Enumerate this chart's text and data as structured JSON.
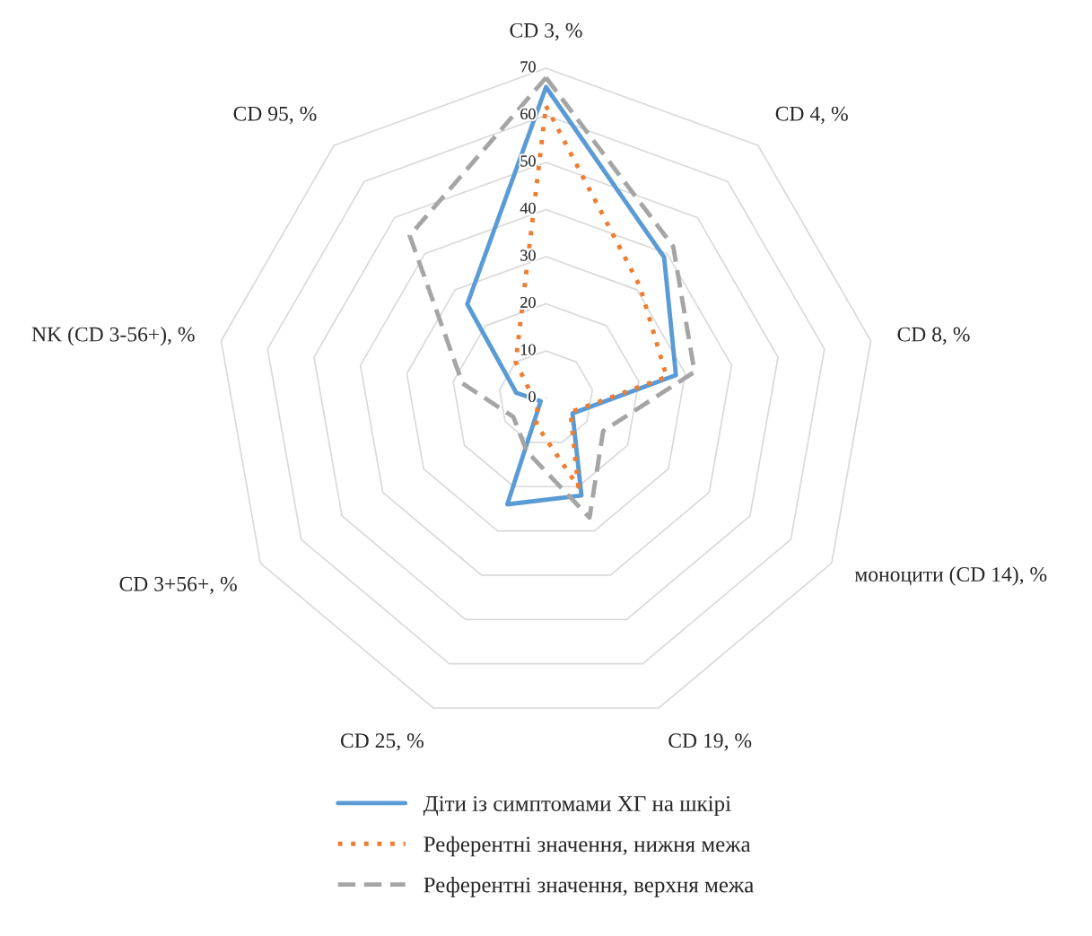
{
  "chart_data": {
    "type": "radar",
    "categories": [
      "CD 3, %",
      "CD 4, %",
      "CD 8, %",
      "моноцити (CD 14), %",
      "CD 19, %",
      "CD 25, %",
      "CD 3+56+, %",
      "NK (CD 3-56+), %",
      "CD 95, %"
    ],
    "series": [
      {
        "name": "Діти із симптомами ХГ на шкірі",
        "color": "#5b9bd5",
        "line_style": "solid",
        "values": [
          66,
          39,
          28,
          6.5,
          22,
          24,
          1.3,
          6.4,
          26
        ]
      },
      {
        "name": "Референтні значення, нижня межа",
        "color": "#ed7d31",
        "line_style": "dotted",
        "values": [
          62,
          31,
          26,
          6,
          20,
          6,
          2,
          3,
          10
        ]
      },
      {
        "name": "Референтні значення, верхня межа",
        "color": "#a5a5a5",
        "line_style": "dashed",
        "values": [
          68,
          42,
          32,
          14,
          27,
          12,
          8,
          18,
          45
        ]
      }
    ],
    "ylim": [
      0,
      70
    ],
    "yticks": [
      0,
      10,
      20,
      30,
      40,
      50,
      60,
      70
    ],
    "grid": true,
    "legend": "bottom",
    "marker": "none"
  }
}
